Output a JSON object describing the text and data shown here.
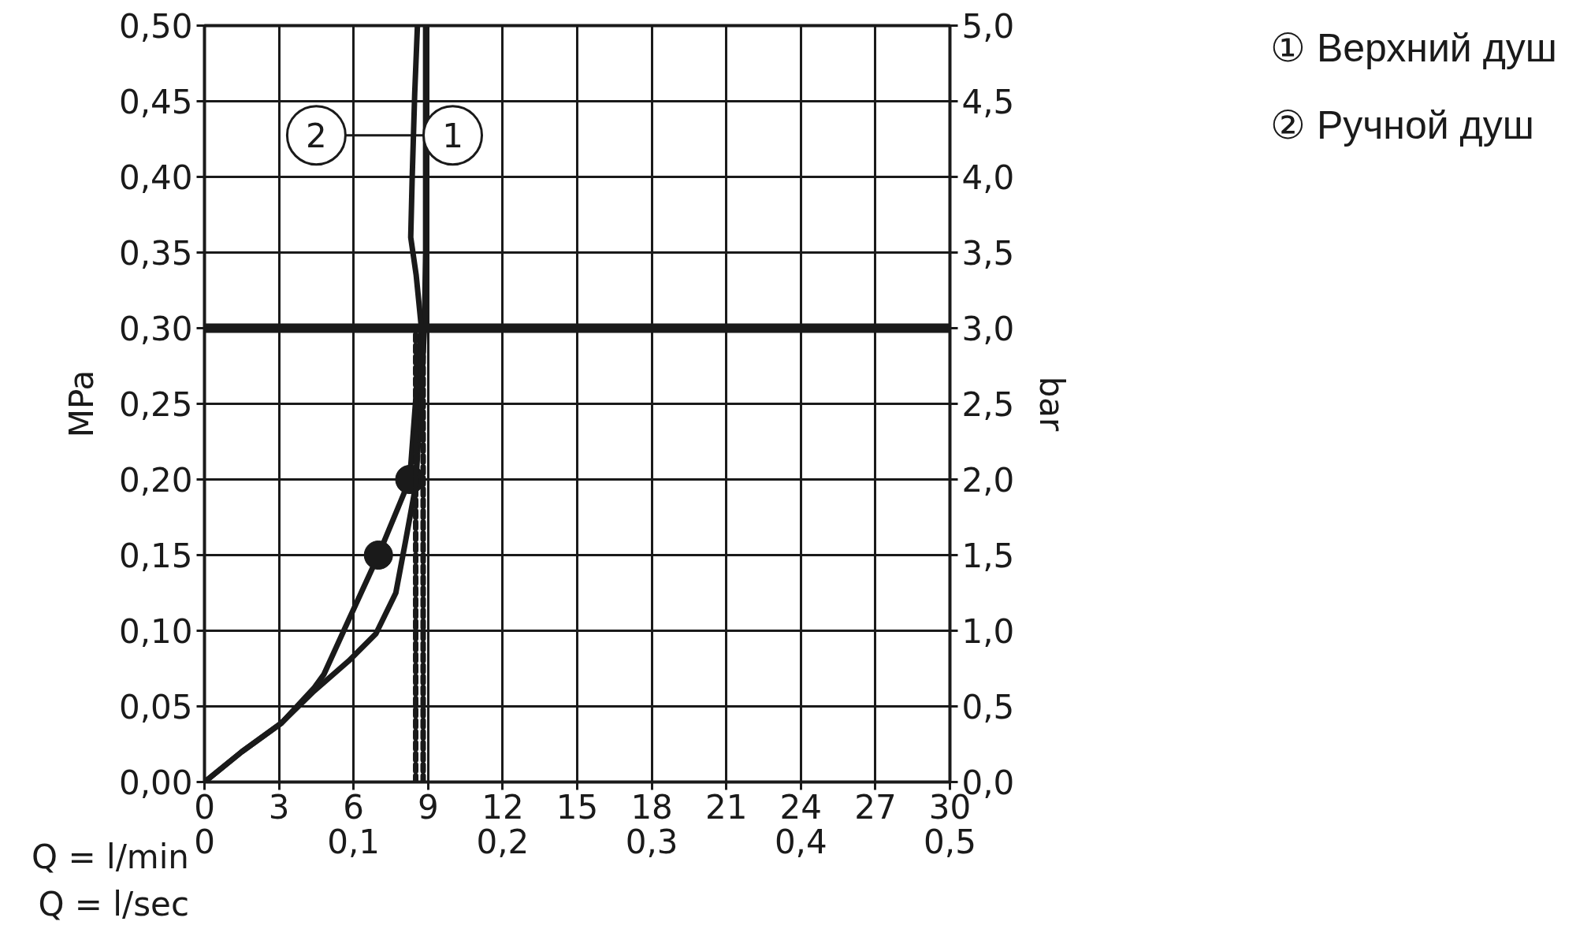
{
  "chart_data": {
    "type": "line",
    "xlabel": "Q = l/min",
    "x2label": "Q = l/sec",
    "ylabel": "MPa",
    "y2label": "bar",
    "xlim": [
      0,
      30
    ],
    "xticks": [
      0,
      3,
      6,
      9,
      12,
      15,
      18,
      21,
      24,
      27,
      30
    ],
    "x2lim": [
      0,
      0.5
    ],
    "x2ticks": [
      0,
      {
        "value": 0.1,
        "label": "0,1"
      },
      {
        "value": 0.2,
        "label": "0,2"
      },
      {
        "value": 0.3,
        "label": "0,3"
      },
      {
        "value": 0.4,
        "label": "0,4"
      },
      {
        "value": 0.5,
        "label": "0,5"
      }
    ],
    "ylim": [
      0,
      0.5
    ],
    "yticks": [
      {
        "value": 0,
        "label": "0,00"
      },
      {
        "value": 0.05,
        "label": "0,05"
      },
      {
        "value": 0.1,
        "label": "0,10"
      },
      {
        "value": 0.15,
        "label": "0,15"
      },
      {
        "value": 0.2,
        "label": "0,20"
      },
      {
        "value": 0.25,
        "label": "0,25"
      },
      {
        "value": 0.3,
        "label": "0,30"
      },
      {
        "value": 0.35,
        "label": "0,35"
      },
      {
        "value": 0.4,
        "label": "0,40"
      },
      {
        "value": 0.45,
        "label": "0,45"
      },
      {
        "value": 0.5,
        "label": "0,50"
      }
    ],
    "y2lim": [
      0,
      5
    ],
    "y2ticks": [
      {
        "value": 0,
        "label": "0,0"
      },
      {
        "value": 0.5,
        "label": "0,5"
      },
      {
        "value": 1,
        "label": "1,0"
      },
      {
        "value": 1.5,
        "label": "1,5"
      },
      {
        "value": 2,
        "label": "2,0"
      },
      {
        "value": 2.5,
        "label": "2,5"
      },
      {
        "value": 3,
        "label": "3,0"
      },
      {
        "value": 3.5,
        "label": "3,5"
      },
      {
        "value": 4,
        "label": "4,0"
      },
      {
        "value": 4.5,
        "label": "4,5"
      },
      {
        "value": 5,
        "label": "5,0"
      }
    ],
    "grid": true,
    "marker": "none",
    "line_style": "solid",
    "ref_lines": [
      {
        "axis": "y",
        "value": 0.3,
        "label": null,
        "color": "#1a1a1a"
      }
    ],
    "series": [
      {
        "color": "#1a1a1a",
        "x": [
          0,
          1.5,
          3.1,
          4.4,
          5.8,
          6.9,
          7.7,
          8.1,
          8.5,
          8.7,
          8.85,
          8.9,
          8.9
        ],
        "values": [
          0,
          0.02,
          0.039,
          0.06,
          0.08,
          0.098,
          0.125,
          0.16,
          0.196,
          0.25,
          0.3,
          0.35,
          0.5
        ]
      },
      {
        "color": "#1a1a1a",
        "x": [
          0,
          1.5,
          3.1,
          4.4,
          4.8,
          5.8,
          7.0,
          8.26,
          8.57,
          8.73,
          8.52,
          8.3,
          8.36,
          8.46,
          8.57
        ],
        "values": [
          0,
          0.02,
          0.039,
          0.062,
          0.071,
          0.107,
          0.15,
          0.2,
          0.268,
          0.3,
          0.335,
          0.36,
          0.4,
          0.455,
          0.5
        ]
      },
      {
        "type": "scatter",
        "color": "#1a1a1a",
        "marker": "circle",
        "x": [
          7.0,
          8.26
        ],
        "values": [
          0.15,
          0.2
        ]
      },
      {
        "color": "#1a1a1a",
        "line_style": "dashed",
        "x": [
          8.5,
          8.5
        ],
        "values": [
          0,
          0.3
        ]
      },
      {
        "color": "#1a1a1a",
        "line_style": "dashed",
        "x": [
          8.8,
          8.8
        ],
        "values": [
          0,
          0.3
        ]
      }
    ],
    "annotations": [
      "2",
      "1",
      "① Верхний душ",
      "② Ручной душ"
    ]
  }
}
